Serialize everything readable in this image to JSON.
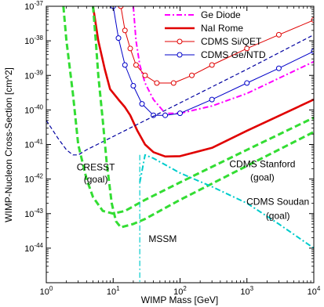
{
  "chart_data": {
    "type": "line",
    "title": "",
    "xlabel": "WIMP Mass [GeV]",
    "ylabel": "WIMP-Nucleon Cross-Section [cm^2]",
    "x_scale": "log",
    "y_scale": "log",
    "xlim": [
      1,
      10000
    ],
    "ylim": [
      1e-45,
      1e-37
    ],
    "x_ticks": [
      {
        "value": 1,
        "base": "10",
        "exp": "0"
      },
      {
        "value": 10,
        "base": "10",
        "exp": "1"
      },
      {
        "value": 100,
        "base": "10",
        "exp": "2"
      },
      {
        "value": 1000,
        "base": "10",
        "exp": "3"
      },
      {
        "value": 10000,
        "base": "10",
        "exp": "4"
      }
    ],
    "y_ticks": [
      {
        "value": 1e-44,
        "base": "10",
        "exp": "-44"
      },
      {
        "value": 1e-43,
        "base": "10",
        "exp": "-43"
      },
      {
        "value": 1e-42,
        "base": "10",
        "exp": "-42"
      },
      {
        "value": 1e-41,
        "base": "10",
        "exp": "-41"
      },
      {
        "value": 1e-40,
        "base": "10",
        "exp": "-40"
      },
      {
        "value": 1e-39,
        "base": "10",
        "exp": "-39"
      },
      {
        "value": 1e-38,
        "base": "10",
        "exp": "-38"
      },
      {
        "value": 1e-37,
        "base": "10",
        "exp": "-37"
      }
    ],
    "grid": false,
    "legend_position": "top-right",
    "series": [
      {
        "name": "Ge Diode",
        "color": "#ff00ff",
        "style": "dash-dot",
        "in_legend": true,
        "points": [
          [
            20,
            1e-37
          ],
          [
            22,
            1e-38
          ],
          [
            25,
            2e-39
          ],
          [
            30,
            6e-40
          ],
          [
            40,
            2e-40
          ],
          [
            60,
            8e-41
          ],
          [
            100,
            8e-41
          ],
          [
            300,
            1.3e-40
          ],
          [
            1000,
            3e-40
          ],
          [
            10000,
            2.5e-39
          ]
        ]
      },
      {
        "name": "NaI Rome",
        "color": "#e00000",
        "style": "solid",
        "in_legend": true,
        "points": [
          [
            5,
            1e-37
          ],
          [
            6,
            1e-38
          ],
          [
            7.5,
            1.5e-39
          ],
          [
            9,
            4e-40
          ],
          [
            12,
            2e-40
          ],
          [
            15,
            1.2e-40
          ],
          [
            18,
            7e-41
          ],
          [
            23,
            2.5e-41
          ],
          [
            30,
            1e-41
          ],
          [
            40,
            6e-42
          ],
          [
            60,
            4.5e-42
          ],
          [
            100,
            4.6e-42
          ],
          [
            300,
            8e-42
          ],
          [
            1000,
            2.5e-41
          ],
          [
            10000,
            2e-40
          ]
        ]
      },
      {
        "name": "CDMS Si/QET",
        "color": "#e00000",
        "style": "solid-circles",
        "in_legend": true,
        "points": [
          [
            13,
            1e-37
          ],
          [
            15,
            2e-38
          ],
          [
            18,
            6e-39
          ],
          [
            22,
            2e-39
          ],
          [
            30,
            1e-39
          ],
          [
            45,
            6e-40
          ],
          [
            80,
            6e-40
          ],
          [
            150,
            1e-39
          ],
          [
            300,
            2e-39
          ],
          [
            1000,
            6e-39
          ],
          [
            3000,
            1.5e-38
          ],
          [
            10000,
            4e-38
          ]
        ]
      },
      {
        "name": "CDMS Ge/NTD",
        "color": "#0000c8",
        "style": "solid-circles",
        "in_legend": true,
        "points": [
          [
            10,
            1e-37
          ],
          [
            12,
            1.2e-38
          ],
          [
            15,
            2e-39
          ],
          [
            20,
            5e-40
          ],
          [
            27,
            1.5e-40
          ],
          [
            40,
            7e-41
          ],
          [
            60,
            7e-41
          ],
          [
            100,
            8e-41
          ],
          [
            300,
            2e-40
          ],
          [
            1000,
            6e-40
          ],
          [
            3000,
            1.6e-39
          ],
          [
            10000,
            5e-39
          ]
        ]
      },
      {
        "name": "CRESST (goal)",
        "color": "#0000a0",
        "style": "dashed",
        "in_legend": false,
        "points": [
          [
            1,
            5e-41
          ],
          [
            1.5,
            1.5e-41
          ],
          [
            2,
            7e-42
          ],
          [
            2.5,
            5e-42
          ],
          [
            3,
            5e-42
          ],
          [
            4,
            7e-42
          ],
          [
            10,
            1.7e-41
          ],
          [
            100,
            1.6e-40
          ],
          [
            1000,
            1.5e-39
          ],
          [
            10000,
            1.5e-38
          ]
        ]
      },
      {
        "name": "CDMS Stanford (goal)",
        "color": "#33dd33",
        "style": "thick-dashed",
        "in_legend": false,
        "points": [
          [
            1.8,
            1e-37
          ],
          [
            2,
            1e-38
          ],
          [
            2.5,
            3e-40
          ],
          [
            3,
            1e-41
          ],
          [
            4,
            1e-42
          ],
          [
            5,
            3e-43
          ],
          [
            7,
            1.2e-43
          ],
          [
            10,
            1e-43
          ],
          [
            15,
            1.2e-43
          ],
          [
            30,
            2.5e-43
          ],
          [
            100,
            8e-43
          ],
          [
            1000,
            7e-42
          ],
          [
            10000,
            6e-41
          ]
        ]
      },
      {
        "name": "CDMS Soudan (goal)",
        "color": "#33dd33",
        "style": "thick-dashed",
        "in_legend": false,
        "points": [
          [
            5,
            1e-37
          ],
          [
            5.5,
            1e-38
          ],
          [
            6,
            1e-39
          ],
          [
            7,
            5e-41
          ],
          [
            8,
            3e-42
          ],
          [
            9.5,
            2e-43
          ],
          [
            11,
            6e-44
          ],
          [
            13,
            4e-44
          ],
          [
            20,
            5e-44
          ],
          [
            30,
            7e-44
          ],
          [
            100,
            2.5e-43
          ],
          [
            1000,
            2.4e-42
          ],
          [
            10000,
            2.3e-41
          ]
        ]
      },
      {
        "name": "MSSM",
        "color": "#00cccc",
        "style": "dash-dot",
        "in_legend": false,
        "points": [
          [
            25,
            8e-43
          ],
          [
            30,
            5e-42
          ],
          [
            40,
            4e-42
          ],
          [
            100,
            1.5e-42
          ],
          [
            300,
            6e-43
          ],
          [
            1000,
            2e-43
          ],
          [
            3000,
            5e-44
          ],
          [
            10000,
            1e-44
          ]
        ]
      }
    ],
    "mssm_region_left_edge": [
      [
        25,
        5e-42
      ],
      [
        25,
        1e-45
      ]
    ],
    "annotations": [
      {
        "text": "CRESST",
        "x": 5.5,
        "y": 1.8e-42
      },
      {
        "text": "(goal)",
        "x": 5.5,
        "y": 8e-43
      },
      {
        "text": "CDMS Stanford",
        "x": 1700,
        "y": 2.2e-42
      },
      {
        "text": "(goal)",
        "x": 1700,
        "y": 9e-43
      },
      {
        "text": "CDMS Soudan",
        "x": 2900,
        "y": 1.8e-43
      },
      {
        "text": "(goal)",
        "x": 2900,
        "y": 7e-44
      },
      {
        "text": "MSSM",
        "x": 55,
        "y": 1.5e-44
      }
    ]
  }
}
